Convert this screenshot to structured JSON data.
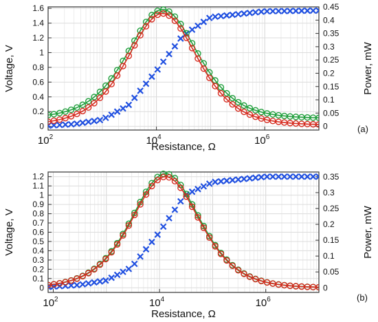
{
  "chart_data": [
    {
      "type": "scatter",
      "panel_label": "(a)",
      "xlabel": "Resistance, Ω",
      "ylabel_left": "Voltage, V",
      "ylabel_right": "Power, mW",
      "x_scale": "log",
      "xlim": [
        100,
        10000000
      ],
      "ylim_left": [
        -0.05,
        1.62
      ],
      "ylim_right": [
        -0.0139,
        0.45
      ],
      "x_ticks": [
        {
          "value": 100,
          "base": "10",
          "exp": "2"
        },
        {
          "value": 10000,
          "base": "10",
          "exp": "4"
        },
        {
          "value": 1000000,
          "base": "10",
          "exp": "6"
        }
      ],
      "left_ticks": [
        0,
        0.2,
        0.4,
        0.6,
        0.8,
        1,
        1.2,
        1.4,
        1.6
      ],
      "left_tick_labels": [
        "0",
        "0.2",
        "0.4",
        "0.6",
        "0.8",
        "1",
        "1.2",
        "1.4",
        "1.6"
      ],
      "right_ticks": [
        0,
        0.05,
        0.1,
        0.15,
        0.2,
        0.25,
        0.3,
        0.35,
        0.4,
        0.45
      ],
      "right_tick_labels": [
        "0",
        "0.05",
        "0.1",
        "0.15",
        "0.2",
        "0.25",
        "0.3",
        "0.35",
        "0.4",
        "0.45"
      ],
      "grid": true,
      "peak_resistance": 13000,
      "series": [
        {
          "role": "voltage",
          "axis": "left",
          "color": "#1f4fe0",
          "marker": "x",
          "points": [
            [
              100,
              0.01
            ],
            [
              300,
              0.03
            ],
            [
              1000,
              0.09
            ],
            [
              3000,
              0.28
            ],
            [
              10000,
              0.75
            ],
            [
              30000,
              1.22
            ],
            [
              100000,
              1.48
            ],
            [
              1000000,
              1.56
            ],
            [
              10000000,
              1.57
            ]
          ]
        },
        {
          "role": "power-green",
          "axis": "right",
          "color": "#1e9e3a",
          "line_color": "#1e9e3a",
          "marker": "o",
          "peak": 0.44,
          "floor": 0.03
        },
        {
          "role": "power-red",
          "axis": "right",
          "color": "#d62a1e",
          "line_color": "#d62a1e",
          "marker": "o",
          "peak": 0.425,
          "floor": 0.005
        }
      ]
    },
    {
      "type": "scatter",
      "panel_label": "(b)",
      "xlabel": "Resistance, Ω",
      "ylabel_left": "Voltage, V",
      "ylabel_right": "Power, mW",
      "x_scale": "log",
      "xlim": [
        80,
        10000000
      ],
      "ylim_left": [
        -0.05,
        1.25
      ],
      "ylim_right": [
        -0.0146,
        0.365
      ],
      "x_ticks": [
        {
          "value": 100,
          "base": "10",
          "exp": "2"
        },
        {
          "value": 10000,
          "base": "10",
          "exp": "4"
        },
        {
          "value": 1000000,
          "base": "10",
          "exp": "6"
        }
      ],
      "left_ticks": [
        0,
        0.1,
        0.2,
        0.3,
        0.4,
        0.5,
        0.6,
        0.7,
        0.8,
        0.9,
        1,
        1.1,
        1.2
      ],
      "left_tick_labels": [
        "0",
        "0.1",
        "0.2",
        "0.3",
        "0.4",
        "0.5",
        "0.6",
        "0.7",
        "0.8",
        "0.9",
        "1",
        "1.1",
        "1.2"
      ],
      "right_ticks": [
        0,
        0.05,
        0.1,
        0.15,
        0.2,
        0.25,
        0.3,
        0.35
      ],
      "right_tick_labels": [
        "0",
        "0.05",
        "0.1",
        "0.15",
        "0.2",
        "0.25",
        "0.3",
        "0.35"
      ],
      "grid": true,
      "peak_resistance": 13000,
      "series": [
        {
          "role": "voltage",
          "axis": "left",
          "color": "#1f4fe0",
          "marker": "x",
          "points": [
            [
              80,
              0.01
            ],
            [
              300,
              0.03
            ],
            [
              1000,
              0.08
            ],
            [
              3000,
              0.22
            ],
            [
              10000,
              0.6
            ],
            [
              30000,
              1.0
            ],
            [
              100000,
              1.14
            ],
            [
              1000000,
              1.2
            ],
            [
              10000000,
              1.2
            ]
          ]
        },
        {
          "role": "power-green",
          "axis": "right",
          "color": "#1e9e3a",
          "line_color": "#1e9e3a",
          "marker": "o",
          "peak": 0.36,
          "floor": 0.0
        },
        {
          "role": "power-red",
          "axis": "right",
          "color": "#d62a1e",
          "line_color": "#d62a1e",
          "marker": "o",
          "peak": 0.35,
          "floor": 0.0
        }
      ]
    }
  ]
}
